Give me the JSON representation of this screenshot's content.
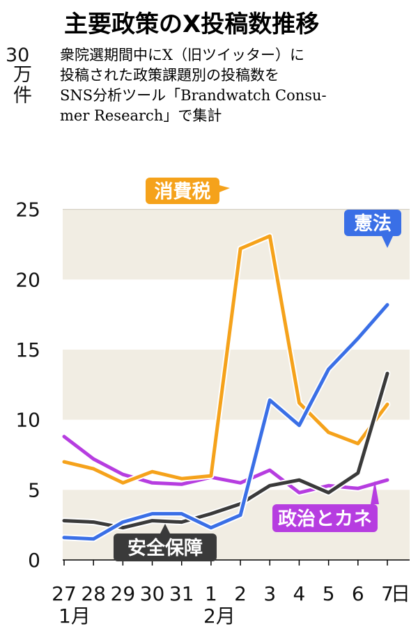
{
  "chart_data": {
    "type": "line",
    "title": "主要政策のX投稿数推移",
    "subtitle_lines": [
      "衆院選期間中にX（旧ツイッター）に",
      "投稿された政策課題別の投稿数を",
      "SNS分析ツール「Brandwatch Consu-",
      "mer Research」で集計"
    ],
    "ylabel_number": "30",
    "ylabel_unit": [
      "万",
      "件"
    ],
    "ylim": [
      0,
      30
    ],
    "yticks": [
      "0",
      "5",
      "10",
      "15",
      "20",
      "25"
    ],
    "categories": [
      "27",
      "28",
      "29",
      "30",
      "31",
      "1",
      "2",
      "3",
      "4",
      "5",
      "6",
      "7"
    ],
    "x_unit": "日",
    "month_labels": [
      "1月",
      "2月"
    ],
    "grid": "alternating horizontal bands",
    "series": [
      {
        "name": "消費税",
        "color": "#f5a21b",
        "values": [
          7.0,
          6.5,
          5.5,
          6.3,
          5.8,
          6.0,
          22.2,
          23.1,
          11.2,
          9.1,
          8.3,
          11.1
        ]
      },
      {
        "name": "憲法",
        "color": "#3a6fe6",
        "values": [
          1.6,
          1.5,
          2.7,
          3.3,
          3.3,
          2.3,
          3.2,
          11.4,
          9.6,
          13.6,
          15.8,
          18.2
        ]
      },
      {
        "name": "政治とカネ",
        "color": "#b63de0",
        "values": [
          8.8,
          7.2,
          6.1,
          5.5,
          5.4,
          5.9,
          5.5,
          6.4,
          4.8,
          5.3,
          5.1,
          5.7
        ]
      },
      {
        "name": "安全保障",
        "color": "#3a3a3a",
        "values": [
          2.8,
          2.7,
          2.3,
          2.8,
          2.7,
          3.3,
          4.0,
          5.3,
          5.7,
          4.8,
          6.2,
          13.3
        ]
      }
    ]
  }
}
